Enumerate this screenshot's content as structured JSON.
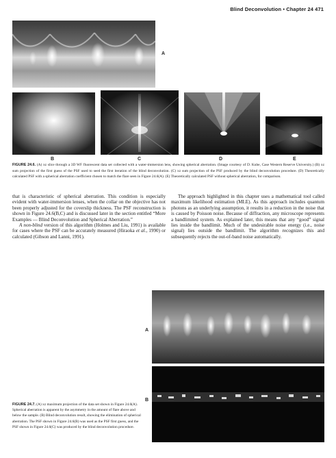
{
  "header": {
    "running_head": "Blind Deconvolution  •  Chapter 24    471"
  },
  "figure_24_6": {
    "labels": {
      "a": "A",
      "b": "B",
      "c": "C",
      "d": "D",
      "e": "E"
    },
    "caption_label": "FIGURE 24.6.",
    "caption_text": " (A) xz slice through a 3D WF fluorescent data set collected with a water-immersion lens, showing spherical aberration. (Image courtesy of D. Kube, Case Western Reserve University.) (B) xz sum projection of the first guess of the PSF used to seed the first iteration of the blind deconvolution. (C) xz sum projection of the PSF produced by the blind deconvolution procedure. (D) Theoretically calculated PSF with a spherical aberration coefficient chosen to match the flare seen in Figure 24.6(A). (E) Theoretically calculated PSF without spherical aberration, for comparison."
  },
  "body": {
    "left_p1": "that is characteristic of spherical aberration. This condition is especially evident with water-immersion lenses, when the collar on the objective has not been properly adjusted for the coverslip thickness. The PSF reconstruction is shown in Figure 24.6(B,C) and is discussed later in the section entitled “More Examples — Blind Deconvolution and Spherical Aberration.”",
    "left_p2_em": "A non-blind",
    "left_p2_a": " version of this algorithm (Holmes and Liu, 1991) is available for cases where the PSF can be accurately measured (Hiraoka ",
    "left_p2_em2": "et al.",
    "left_p2_b": ", 1990) or calculated (Gibson and Lanni, 1991).",
    "right_p1": "The approach highlighted in this chapter uses a mathematical tool called maximum likelihood estimation (MLE). As this approach includes quantum photons as an underlying assumption, it results in a reduction in the noise that is caused by Poisson noise. Because of diffraction, any microscope represents a bandlimited system. As explained later, this means that any “good” signal lies inside the bandlimit. Much of the undesirable noise energy (i.e., noise signal) lies outside the bandlimit. The algorithm recognizes this and subsequently rejects the out-of-band noise automatically."
  },
  "figure_24_7": {
    "labels": {
      "a": "A",
      "b": "B"
    },
    "caption_label": "FIGURE 24.7.",
    "caption_text": " (A) xz maximum projection of the data set shown in Figure 24.6(A). Spherical aberration is apparent by the asymmetry in the amount of flare above and below the sample. (B) Blind deconvolution result, showing the elimination of spherical aberration. The PSF shown in Figure 24.6(B) was used as the PSF first guess, and the PSF shown in Figure 24.6(C) was produced by the blind deconvolution procedure."
  }
}
